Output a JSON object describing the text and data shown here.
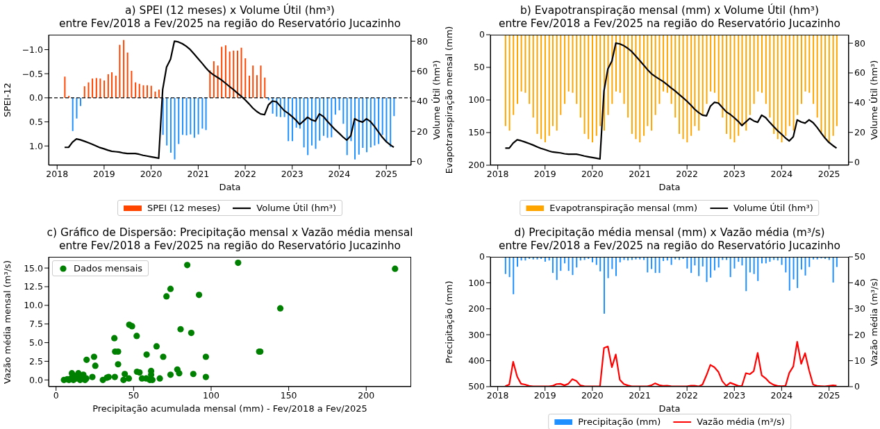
{
  "chart_data": [
    {
      "type": "bar",
      "title": "a) SPEI (12 meses) x Volume Útil (hm³)\nentre Fev/2018 a Fev/2025 na região do Reservatório Jucazinho",
      "xlabel": "Data",
      "ylabel": "SPEI-12",
      "y2label": "Volume Útil (hm³)",
      "legend": "bottom",
      "x": [
        "2018-02-28",
        "2018-03-31",
        "2018-04-30",
        "2018-05-31",
        "2018-06-30",
        "2018-07-31",
        "2018-08-31",
        "2018-09-30",
        "2018-10-31",
        "2018-11-30",
        "2018-12-31",
        "2019-01-31",
        "2019-02-28",
        "2019-03-31",
        "2019-04-30",
        "2019-05-31",
        "2019-06-30",
        "2019-07-31",
        "2019-08-31",
        "2019-09-30",
        "2019-10-31",
        "2019-11-30",
        "2019-12-31",
        "2020-01-31",
        "2020-02-29",
        "2020-03-31",
        "2020-04-30",
        "2020-05-31",
        "2020-06-30",
        "2020-07-31",
        "2020-08-31",
        "2020-09-30",
        "2020-10-31",
        "2020-11-30",
        "2020-12-31",
        "2021-01-31",
        "2021-02-28",
        "2021-03-31",
        "2021-04-30",
        "2021-05-31",
        "2021-06-30",
        "2021-07-31",
        "2021-08-31",
        "2021-09-30",
        "2021-10-31",
        "2021-11-30",
        "2021-12-31",
        "2022-01-31",
        "2022-02-28",
        "2022-03-31",
        "2022-04-30",
        "2022-05-31",
        "2022-06-30",
        "2022-07-31",
        "2022-08-31",
        "2022-09-30",
        "2022-10-31",
        "2022-11-30",
        "2022-12-31",
        "2023-01-31",
        "2023-02-28",
        "2023-03-31",
        "2023-04-30",
        "2023-05-31",
        "2023-06-30",
        "2023-07-31",
        "2023-08-31",
        "2023-09-30",
        "2023-10-31",
        "2023-11-30",
        "2023-12-31",
        "2024-01-31",
        "2024-02-29",
        "2024-03-31",
        "2024-04-30",
        "2024-05-31",
        "2024-06-30",
        "2024-07-31",
        "2024-08-31",
        "2024-09-30",
        "2024-10-31",
        "2024-11-30",
        "2024-12-31",
        "2025-01-31",
        "2025-02-28"
      ],
      "xlim": [
        "2017-10-27",
        "2025-07-13"
      ],
      "xticks": [
        "2018",
        "2019",
        "2020",
        "2021",
        "2022",
        "2023",
        "2024",
        "2025"
      ],
      "ylim": [
        1.4,
        -1.31
      ],
      "yticks": [
        {
          "value": -1,
          "label": "−1.0"
        },
        {
          "value": -0.5,
          "label": "−0.5"
        },
        {
          "value": 0,
          "label": "0.0"
        },
        {
          "value": 0.5,
          "label": "0.5"
        },
        {
          "value": 1,
          "label": "1.0"
        }
      ],
      "y2lim": [
        -2.5,
        84.3
      ],
      "y2ticks": [
        0,
        20,
        40,
        60,
        80
      ],
      "ref_lines": [
        {
          "axis": "y",
          "value": 0,
          "color": "#000000",
          "line_style": "dashed"
        }
      ],
      "series": [
        {
          "name": "SPEI (12 meses)",
          "color": "#ff4500",
          "values": [
            -0.44,
            -0.04,
            0.69,
            0.43,
            0.17,
            -0.24,
            -0.32,
            -0.4,
            -0.41,
            -0.4,
            -0.36,
            -0.49,
            -0.53,
            -0.46,
            -1.1,
            -1.2,
            -0.94,
            -0.56,
            -0.32,
            -0.29,
            -0.26,
            -0.26,
            -0.25,
            -0.13,
            -0.17,
            0.77,
            0.99,
            1.14,
            1.28,
            0.96,
            0.77,
            0.78,
            0.76,
            0.83,
            0.76,
            0.64,
            0.67,
            -0.57,
            -0.76,
            -0.67,
            -1.06,
            -1.09,
            -0.96,
            -0.98,
            -0.98,
            -1.04,
            -0.82,
            -0.46,
            -0.67,
            -0.47,
            -0.67,
            -0.42,
            0.05,
            0.33,
            0.39,
            0.4,
            0.4,
            0.9,
            0.9,
            0.62,
            0.64,
            1.03,
            1.19,
            0.99,
            1.06,
            0.89,
            0.79,
            0.83,
            0.82,
            0.35,
            0.26,
            0.54,
            1.19,
            0.9,
            1.28,
            1.18,
            1.04,
            1.13,
            1.03,
            0.99,
            0.96,
            0.77,
            0.93,
            1.02,
            0.38
          ],
          "colors": [
            "#ff4500",
            "#ff4500",
            "#1e90ff",
            "#1e90ff",
            "#1e90ff",
            "#ff4500",
            "#ff4500",
            "#ff4500",
            "#ff4500",
            "#ff4500",
            "#ff4500",
            "#ff4500",
            "#ff4500",
            "#ff4500",
            "#ff4500",
            "#ff4500",
            "#ff4500",
            "#ff4500",
            "#ff4500",
            "#ff4500",
            "#ff4500",
            "#ff4500",
            "#ff4500",
            "#ff4500",
            "#ff4500",
            "#1e90ff",
            "#1e90ff",
            "#1e90ff",
            "#1e90ff",
            "#1e90ff",
            "#1e90ff",
            "#1e90ff",
            "#1e90ff",
            "#1e90ff",
            "#1e90ff",
            "#1e90ff",
            "#1e90ff",
            "#ff4500",
            "#ff4500",
            "#ff4500",
            "#ff4500",
            "#ff4500",
            "#ff4500",
            "#ff4500",
            "#ff4500",
            "#ff4500",
            "#ff4500",
            "#ff4500",
            "#ff4500",
            "#ff4500",
            "#ff4500",
            "#ff4500",
            "#1e90ff",
            "#1e90ff",
            "#1e90ff",
            "#1e90ff",
            "#1e90ff",
            "#1e90ff",
            "#1e90ff",
            "#1e90ff",
            "#1e90ff",
            "#1e90ff",
            "#1e90ff",
            "#1e90ff",
            "#1e90ff",
            "#1e90ff",
            "#1e90ff",
            "#1e90ff",
            "#1e90ff",
            "#1e90ff",
            "#1e90ff",
            "#1e90ff",
            "#1e90ff",
            "#1e90ff",
            "#1e90ff",
            "#1e90ff",
            "#1e90ff",
            "#1e90ff",
            "#1e90ff",
            "#1e90ff",
            "#1e90ff",
            "#1e90ff",
            "#1e90ff",
            "#1e90ff",
            "#1e90ff"
          ]
        },
        {
          "name": "Volume Útil (hm³)",
          "type": "line",
          "axis": "y2",
          "color": "#000000",
          "values": [
            9.4,
            9.4,
            12.8,
            15.0,
            14.4,
            13.5,
            12.5,
            11.5,
            10.3,
            9.2,
            8.4,
            7.5,
            6.8,
            6.5,
            6.2,
            5.6,
            5.3,
            5.3,
            5.3,
            4.8,
            4.1,
            3.6,
            3.1,
            2.6,
            2.1,
            47.9,
            62.7,
            68.0,
            80.0,
            79.5,
            78.3,
            76.6,
            74.4,
            71.5,
            68.4,
            65.3,
            62.4,
            59.5,
            57.6,
            55.9,
            54.2,
            52.1,
            49.9,
            47.9,
            45.6,
            43.4,
            41.0,
            38.3,
            35.6,
            33.3,
            31.6,
            31.1,
            37.6,
            40.2,
            39.7,
            36.8,
            33.8,
            32.1,
            29.9,
            27.4,
            24.6,
            27.0,
            29.4,
            27.7,
            26.8,
            31.6,
            29.9,
            26.8,
            23.9,
            21.2,
            18.8,
            16.2,
            14.2,
            17.1,
            28.4,
            27.0,
            26.2,
            28.4,
            26.5,
            23.4,
            19.7,
            16.2,
            13.2,
            11.1,
            9.4
          ]
        }
      ]
    },
    {
      "type": "bar",
      "title": "b) Evapotranspiração mensal (mm) x Volume Útil (hm³)\nentre Fev/2018 a Fev/2025 na região do Reservatório Jucazinho",
      "xlabel": "Data",
      "ylabel": "Evapotranspiração mensal (mm)",
      "y2label": "Volume Útil (hm³)",
      "legend": "bottom",
      "x": [
        "2018-02-28",
        "2018-03-31",
        "2018-04-30",
        "2018-05-31",
        "2018-06-30",
        "2018-07-31",
        "2018-08-31",
        "2018-09-30",
        "2018-10-31",
        "2018-11-30",
        "2018-12-31",
        "2019-01-31",
        "2019-02-28",
        "2019-03-31",
        "2019-04-30",
        "2019-05-31",
        "2019-06-30",
        "2019-07-31",
        "2019-08-31",
        "2019-09-30",
        "2019-10-31",
        "2019-11-30",
        "2019-12-31",
        "2020-01-31",
        "2020-02-29",
        "2020-03-31",
        "2020-04-30",
        "2020-05-31",
        "2020-06-30",
        "2020-07-31",
        "2020-08-31",
        "2020-09-30",
        "2020-10-31",
        "2020-11-30",
        "2020-12-31",
        "2021-01-31",
        "2021-02-28",
        "2021-03-31",
        "2021-04-30",
        "2021-05-31",
        "2021-06-30",
        "2021-07-31",
        "2021-08-31",
        "2021-09-30",
        "2021-10-31",
        "2021-11-30",
        "2021-12-31",
        "2022-01-31",
        "2022-02-28",
        "2022-03-31",
        "2022-04-30",
        "2022-05-31",
        "2022-06-30",
        "2022-07-31",
        "2022-08-31",
        "2022-09-30",
        "2022-10-31",
        "2022-11-30",
        "2022-12-31",
        "2023-01-31",
        "2023-02-28",
        "2023-03-31",
        "2023-04-30",
        "2023-05-31",
        "2023-06-30",
        "2023-07-31",
        "2023-08-31",
        "2023-09-30",
        "2023-10-31",
        "2023-11-30",
        "2023-12-31",
        "2024-01-31",
        "2024-02-29",
        "2024-03-31",
        "2024-04-30",
        "2024-05-31",
        "2024-06-30",
        "2024-07-31",
        "2024-08-31",
        "2024-09-30",
        "2024-10-31",
        "2024-11-30",
        "2024-12-31",
        "2025-01-31",
        "2025-02-28"
      ],
      "xlim": [
        "2017-11-05",
        "2025-06-02"
      ],
      "xticks": [
        "2018",
        "2019",
        "2020",
        "2021",
        "2022",
        "2023",
        "2024",
        "2025"
      ],
      "ylim": [
        200,
        0
      ],
      "yticks": [
        0,
        50,
        100,
        150,
        200
      ],
      "y2lim": [
        -2.1,
        85.7
      ],
      "y2ticks": [
        0,
        20,
        40,
        60,
        80
      ],
      "series": [
        {
          "name": "Evapotranspiração mensal (mm)",
          "color": "#ffa500",
          "values": [
            140,
            147,
            123,
            106,
            87,
            89,
            106,
            127,
            152,
            160,
            165,
            155,
            140,
            147,
            123,
            106,
            87,
            89,
            106,
            127,
            152,
            160,
            165,
            155,
            140,
            147,
            123,
            106,
            87,
            89,
            106,
            127,
            152,
            160,
            165,
            155,
            140,
            147,
            123,
            106,
            87,
            89,
            106,
            127,
            152,
            160,
            165,
            155,
            140,
            147,
            123,
            106,
            87,
            89,
            106,
            127,
            152,
            160,
            165,
            155,
            140,
            147,
            123,
            106,
            87,
            89,
            106,
            127,
            152,
            160,
            165,
            155,
            140,
            147,
            123,
            106,
            87,
            89,
            106,
            127,
            152,
            160,
            165,
            155,
            140
          ]
        },
        {
          "name": "Volume Útil (hm³)",
          "type": "line",
          "axis": "y2",
          "color": "#000000",
          "values": [
            9.4,
            9.4,
            12.8,
            15.0,
            14.4,
            13.5,
            12.5,
            11.5,
            10.3,
            9.2,
            8.4,
            7.5,
            6.8,
            6.5,
            6.2,
            5.6,
            5.3,
            5.3,
            5.3,
            4.8,
            4.1,
            3.6,
            3.1,
            2.6,
            2.1,
            47.9,
            62.7,
            68.0,
            80.0,
            79.5,
            78.3,
            76.6,
            74.4,
            71.5,
            68.4,
            65.3,
            62.4,
            59.5,
            57.6,
            55.9,
            54.2,
            52.1,
            49.9,
            47.9,
            45.6,
            43.4,
            41.0,
            38.3,
            35.6,
            33.3,
            31.6,
            31.1,
            37.6,
            40.2,
            39.7,
            36.8,
            33.8,
            32.1,
            29.9,
            27.4,
            24.6,
            27.0,
            29.4,
            27.7,
            26.8,
            31.6,
            29.9,
            26.8,
            23.9,
            21.2,
            18.8,
            16.2,
            14.2,
            17.1,
            28.4,
            27.0,
            26.2,
            28.4,
            26.5,
            23.4,
            19.7,
            16.2,
            13.2,
            11.1,
            9.4
          ]
        }
      ]
    },
    {
      "type": "scatter",
      "title": "c) Gráfico de Dispersão: Precipitação mensal x Vazão média mensal\nentre Fev/2018 a Fev/2025 na região do Reservatório Jucazinho",
      "xlabel": "Precipitação acumulada mensal (mm) - Fev/2018 a Fev/2025",
      "ylabel": "Vazão média mensal (m³/s)",
      "legend": "top left",
      "marker": "circle",
      "xlim": [
        -4.8,
        229
      ],
      "xticks": [
        0,
        50,
        100,
        150,
        200
      ],
      "ylim": [
        -0.9,
        16.5
      ],
      "yticks": [
        {
          "value": 0,
          "label": "0.0"
        },
        {
          "value": 2.5,
          "label": "2.5"
        },
        {
          "value": 5,
          "label": "5.0"
        },
        {
          "value": 7.5,
          "label": "7.5"
        },
        {
          "value": 10,
          "label": "10.0"
        },
        {
          "value": 12.5,
          "label": "12.5"
        },
        {
          "value": 15,
          "label": "15.0"
        }
      ],
      "series": [
        {
          "name": "Dados mensais",
          "color": "#008000",
          "x": [
            218.6,
            117.4,
            84.6,
            73.8,
            71.2,
            92.2,
            144.6,
            47.2,
            49.0,
            80.3,
            87.2,
            52.0,
            37.6,
            64.8,
            131.0,
            131.7,
            38.1,
            40.0,
            58.4,
            69.1,
            96.6,
            24.5,
            19.7,
            25.3,
            40.0,
            78.2,
            79.4,
            88.5,
            73.8,
            96.6,
            61.3,
            61.3,
            52.2,
            53.8,
            44.3,
            46.9,
            43.5,
            55.4,
            58.1,
            60.5,
            62.1,
            66.9,
            37.9,
            33.9,
            32.8,
            30.2,
            23.4,
            5.1,
            7.2,
            9.6,
            10.2,
            12.3,
            14.4,
            16.3,
            17.6,
            19.5,
            18.7,
            8.3,
            11.2,
            13.1,
            15.5
          ],
          "values": [
            14.9,
            15.7,
            15.4,
            12.2,
            11.2,
            11.4,
            9.6,
            7.4,
            7.2,
            6.8,
            6.3,
            5.9,
            5.6,
            4.5,
            3.8,
            3.8,
            3.8,
            3.8,
            3.4,
            3.1,
            3.1,
            3.1,
            2.7,
            1.9,
            2.1,
            1.4,
            0.9,
            0.8,
            0.7,
            0.4,
            1.2,
            0.7,
            1.1,
            1.0,
            0.8,
            0.2,
            0.0,
            0.2,
            0.2,
            0.0,
            0.0,
            0.2,
            0.4,
            0.4,
            0.3,
            0.0,
            0.4,
            0.0,
            0.1,
            0.2,
            0.9,
            0.5,
            0.9,
            0.4,
            0.7,
            0.2,
            0.0,
            0.0,
            0.0,
            0.2,
            0.0
          ]
        }
      ]
    },
    {
      "type": "bar",
      "title": "d) Precipitação média mensal (mm) x Vazão média (m³/s)\nentre Fev/2018 a Fev/2025 na região do Reservatório Jucazinho",
      "xlabel": "Data",
      "ylabel": "Precipitação (mm)",
      "y2label": "Vazão média (m³/s)",
      "legend": "bottom",
      "x": [
        "2018-02-28",
        "2018-03-31",
        "2018-04-30",
        "2018-05-31",
        "2018-06-30",
        "2018-07-31",
        "2018-08-31",
        "2018-09-30",
        "2018-10-31",
        "2018-11-30",
        "2018-12-31",
        "2019-01-31",
        "2019-02-28",
        "2019-03-31",
        "2019-04-30",
        "2019-05-31",
        "2019-06-30",
        "2019-07-31",
        "2019-08-31",
        "2019-09-30",
        "2019-10-31",
        "2019-11-30",
        "2019-12-31",
        "2020-01-31",
        "2020-02-29",
        "2020-03-31",
        "2020-04-30",
        "2020-05-31",
        "2020-06-30",
        "2020-07-31",
        "2020-08-31",
        "2020-09-30",
        "2020-10-31",
        "2020-11-30",
        "2020-12-31",
        "2021-01-31",
        "2021-02-28",
        "2021-03-31",
        "2021-04-30",
        "2021-05-31",
        "2021-06-30",
        "2021-07-31",
        "2021-08-31",
        "2021-09-30",
        "2021-10-31",
        "2021-11-30",
        "2021-12-31",
        "2022-01-31",
        "2022-02-28",
        "2022-03-31",
        "2022-04-30",
        "2022-05-31",
        "2022-06-30",
        "2022-07-31",
        "2022-08-31",
        "2022-09-30",
        "2022-10-31",
        "2022-11-30",
        "2022-12-31",
        "2023-01-31",
        "2023-02-28",
        "2023-03-31",
        "2023-04-30",
        "2023-05-31",
        "2023-06-30",
        "2023-07-31",
        "2023-08-31",
        "2023-09-30",
        "2023-10-31",
        "2023-11-30",
        "2023-12-31",
        "2024-01-31",
        "2024-02-29",
        "2024-03-31",
        "2024-04-30",
        "2024-05-31",
        "2024-06-30",
        "2024-07-31",
        "2024-08-31",
        "2024-09-30",
        "2024-10-31",
        "2024-11-30",
        "2024-12-31",
        "2025-01-31",
        "2025-02-28"
      ],
      "xlim": [
        "2017-11-05",
        "2025-06-02"
      ],
      "xticks": [
        "2018",
        "2019",
        "2020",
        "2021",
        "2022",
        "2023",
        "2024",
        "2025"
      ],
      "ylim": [
        500,
        0
      ],
      "yticks": [
        0,
        100,
        200,
        300,
        400,
        500
      ],
      "y2lim": [
        0,
        50
      ],
      "y2ticks": [
        0,
        10,
        20,
        30,
        40,
        50
      ],
      "series": [
        {
          "name": "Precipitação (mm)",
          "color": "#1e90ff",
          "values": [
            66,
            78,
            144,
            38,
            14,
            14,
            8,
            10,
            10,
            8,
            19,
            14,
            62,
            89,
            54,
            25,
            54,
            70,
            41,
            14,
            12,
            8,
            21,
            31,
            56,
            219,
            82,
            47,
            74,
            21,
            12,
            14,
            12,
            10,
            10,
            12,
            60,
            47,
            62,
            62,
            16,
            14,
            31,
            10,
            12,
            8,
            45,
            62,
            33,
            74,
            37,
            97,
            80,
            52,
            41,
            12,
            12,
            78,
            45,
            19,
            33,
            132,
            60,
            66,
            93,
            25,
            25,
            19,
            12,
            14,
            31,
            60,
            130,
            87,
            120,
            49,
            72,
            39,
            10,
            10,
            6,
            8,
            12,
            99,
            39
          ]
        },
        {
          "name": "Vazão média (m³/s)",
          "type": "line",
          "axis": "y2",
          "color": "#ff0000",
          "values": [
            0.2,
            0.8,
            9.6,
            3.9,
            1.1,
            0.8,
            0.3,
            0.1,
            0.1,
            0.1,
            0.1,
            0.1,
            0.3,
            1.0,
            1.1,
            0.5,
            1.1,
            2.9,
            2.2,
            0.5,
            0.2,
            0.1,
            0.1,
            0.1,
            0.1,
            14.9,
            15.5,
            7.5,
            12.4,
            2.7,
            1.0,
            0.5,
            0.1,
            0.1,
            0.1,
            0.1,
            0.1,
            0.5,
            1.3,
            0.6,
            0.3,
            0.4,
            0.2,
            0.1,
            0.1,
            0.1,
            0.1,
            0.4,
            0.4,
            0.1,
            0.8,
            4.4,
            8.4,
            7.5,
            5.7,
            2.1,
            0.3,
            1.5,
            0.9,
            0.3,
            0.2,
            5.2,
            4.8,
            6.0,
            13.0,
            4.4,
            3.2,
            1.6,
            0.7,
            0.3,
            0.2,
            0.3,
            5.3,
            7.8,
            17.3,
            8.8,
            12.9,
            6.3,
            0.8,
            0.3,
            0.2,
            0.1,
            0.3,
            0.5,
            0.4
          ]
        }
      ]
    }
  ]
}
